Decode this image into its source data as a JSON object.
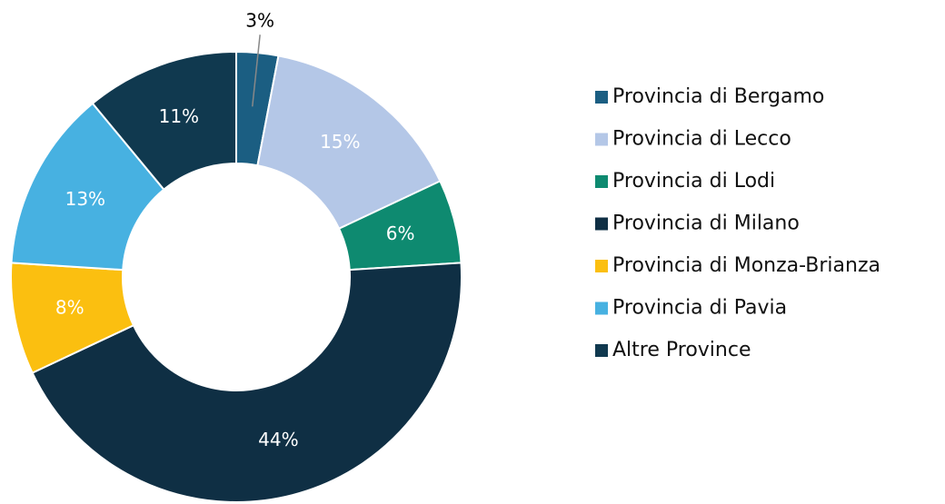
{
  "chart_data": {
    "type": "donut",
    "categories": [
      "Provincia di Bergamo",
      "Provincia di Lecco",
      "Provincia di Lodi",
      "Provincia di Milano",
      "Provincia di Monza-Brianza",
      "Provincia di Pavia",
      "Altre Province"
    ],
    "values": [
      3,
      15,
      6,
      44,
      8,
      13,
      11
    ],
    "value_labels": [
      "3%",
      "15%",
      "6%",
      "44%",
      "8%",
      "13%",
      "11%"
    ],
    "colors": [
      "#1b5e82",
      "#b4c7e7",
      "#0e8a70",
      "#0f2f44",
      "#fbbf10",
      "#47b1e1",
      "#10394f"
    ],
    "legend": "right"
  }
}
